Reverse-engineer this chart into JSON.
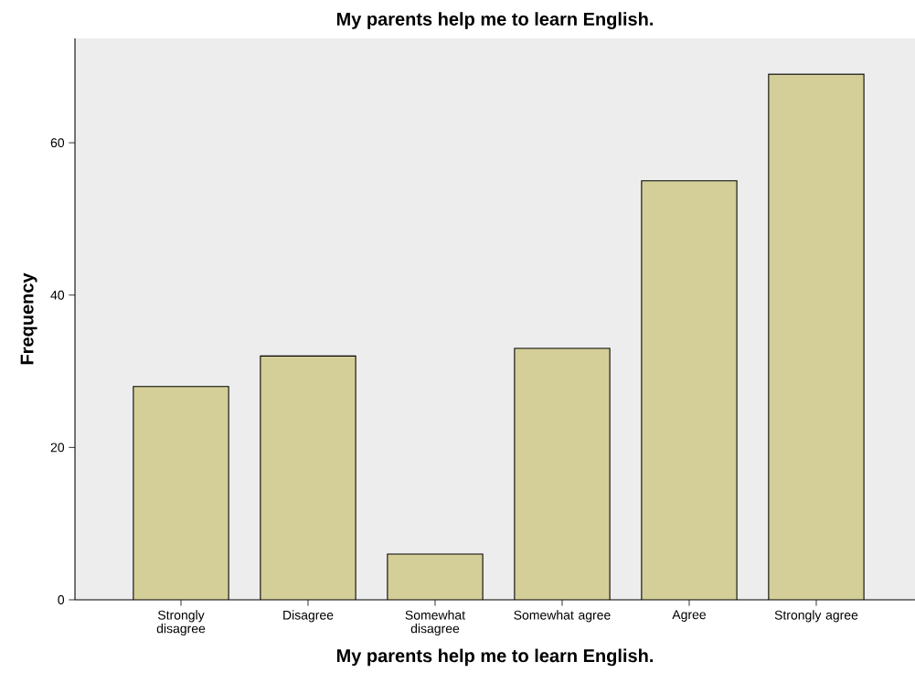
{
  "chart_data": {
    "type": "bar",
    "title": "My parents help me to learn English.",
    "xlabel": "My parents help me to learn English.",
    "ylabel": "Frequency",
    "categories": [
      "Strongly disagree",
      "Disagree",
      "Somewhat disagree",
      "Somewhat agree",
      "Agree",
      "Strongly agree"
    ],
    "values": [
      28,
      32,
      6,
      33,
      55,
      69
    ],
    "color": "#d4cf98",
    "ylim": [
      0,
      73.7
    ],
    "yticks": [
      0,
      20,
      40,
      60
    ],
    "grid": false
  }
}
